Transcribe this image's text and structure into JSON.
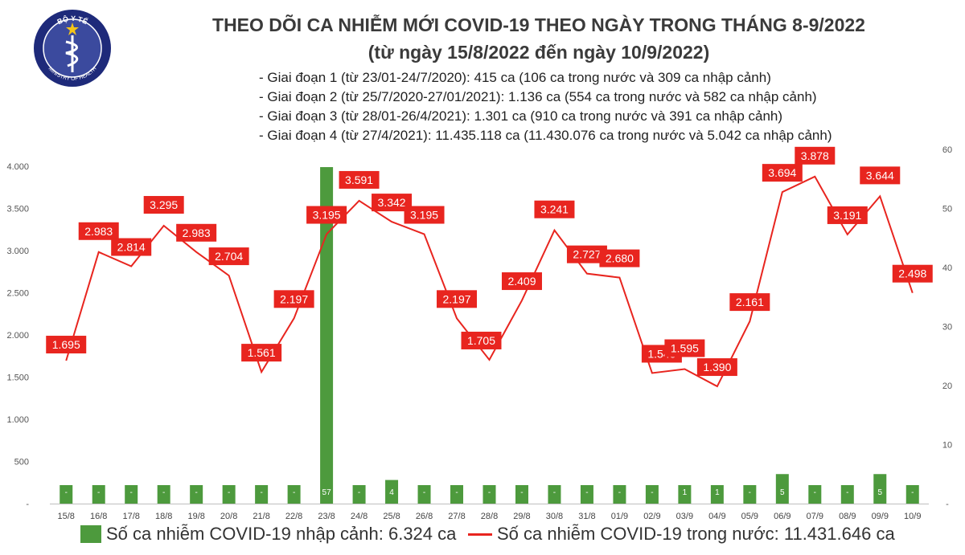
{
  "logo": {
    "top_text": "BỘ Y TẾ",
    "bottom_text": "MINISTRY OF HEALTH",
    "colors": {
      "ring": "#1e2a7a",
      "inner": "#3b4a9e",
      "star": "#f5c518"
    }
  },
  "header": {
    "title": "THEO DÕI CA NHIỄM MỚI COVID-19 THEO NGÀY TRONG THÁNG 8-9/2022",
    "subtitle": "(từ ngày 15/8/2022 đến ngày 10/9/2022)"
  },
  "notes": [
    "- Giai đoạn 1 (từ 23/01-24/7/2020): 415 ca (106 ca trong nước và 309 ca nhập cảnh)",
    "- Giai đoạn 2 (từ 25/7/2020-27/01/2021): 1.136 ca (554 ca trong nước và 582 ca nhập cảnh)",
    "- Giai đoạn 3 (từ 28/01-26/4/2021): 1.301 ca (910 ca trong nước và 391 ca nhập cảnh)",
    "- Giai đoạn 4 (từ 27/4/2021): 11.435.118 ca (11.430.076 ca trong nước và 5.042 ca nhập cảnh)"
  ],
  "chart_data": {
    "type": "bar+line",
    "categories": [
      "15/8",
      "16/8",
      "17/8",
      "18/8",
      "19/8",
      "20/8",
      "21/8",
      "22/8",
      "23/8",
      "24/8",
      "25/8",
      "26/8",
      "27/8",
      "28/8",
      "29/8",
      "30/8",
      "31/8",
      "01/9",
      "02/9",
      "03/9",
      "04/9",
      "05/9",
      "06/9",
      "07/9",
      "08/9",
      "09/9",
      "10/9"
    ],
    "series": [
      {
        "name": "Số ca nhiễm COVID-19 nhập cảnh: 6.324 ca",
        "type": "bar",
        "axis": "right",
        "color": "#4d9a3d",
        "values": [
          0,
          0,
          0,
          0,
          0,
          0,
          0,
          0,
          57,
          0,
          4,
          0,
          0,
          0,
          0,
          0,
          0,
          0,
          0,
          1,
          1,
          0,
          5,
          0,
          0,
          5,
          0
        ],
        "labels": [
          "-",
          "-",
          "-",
          "-",
          "-",
          "-",
          "-",
          "-",
          "57",
          "-",
          "4",
          "-",
          "-",
          "-",
          "-",
          "-",
          "-",
          "-",
          "-",
          "1",
          "1",
          "-",
          "5",
          "-",
          "-",
          "5",
          "-"
        ]
      },
      {
        "name": "Số ca nhiễm COVID-19 trong nước: 11.431.646 ca",
        "type": "line",
        "axis": "left",
        "color": "#e8251f",
        "values": [
          1695,
          2983,
          2814,
          3295,
          2983,
          2704,
          1561,
          2197,
          3195,
          3591,
          3342,
          3195,
          2197,
          1705,
          2409,
          3241,
          2727,
          2680,
          1548,
          1595,
          1390,
          2161,
          3694,
          3878,
          3191,
          3644,
          2498
        ],
        "labels": [
          "1.695",
          "2.983",
          "2.814",
          "3.295",
          "2.983",
          "2.704",
          "1.561",
          "2.197",
          "3.195",
          "3.591",
          "3.342",
          "3.195",
          "2.197",
          "1.705",
          "2.409",
          "3.241",
          "2.727",
          "2.680",
          "1.548",
          "1.595",
          "1.390",
          "2.161",
          "3.694",
          "3.878",
          "3.191",
          "3.644",
          "2.498"
        ]
      }
    ],
    "y_left": {
      "range": [
        0,
        4000
      ],
      "ticks": [
        "-",
        "500",
        "1.000",
        "1.500",
        "2.000",
        "2.500",
        "3.000",
        "3.500",
        "4.000"
      ]
    },
    "y_right": {
      "range": [
        0,
        60
      ],
      "ticks": [
        "-",
        "10",
        "20",
        "30",
        "40",
        "50",
        "60"
      ]
    },
    "legend_placement": "bottom",
    "grid": false
  }
}
